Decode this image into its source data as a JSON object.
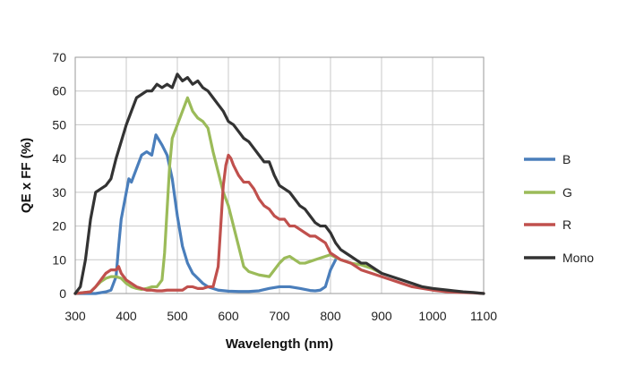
{
  "chart_data": {
    "type": "line",
    "xlabel": "Wavelength (nm)",
    "ylabel": "QE x FF (%)",
    "xlim": [
      300,
      1100
    ],
    "ylim": [
      0,
      70
    ],
    "xticks": [
      300,
      400,
      500,
      600,
      700,
      800,
      900,
      1000,
      1100
    ],
    "yticks": [
      0,
      10,
      20,
      30,
      40,
      50,
      60,
      70
    ],
    "grid": true,
    "legend": "right",
    "series": [
      {
        "name": "B",
        "color": "#4a7ebb",
        "x": [
          300,
          340,
          360,
          370,
          380,
          385,
          390,
          400,
          405,
          410,
          420,
          430,
          440,
          450,
          458,
          462,
          470,
          480,
          490,
          500,
          510,
          520,
          530,
          540,
          550,
          560,
          570,
          580,
          600,
          620,
          640,
          660,
          680,
          700,
          720,
          740,
          760,
          770,
          780,
          790,
          800,
          810
        ],
        "y": [
          0,
          0,
          0.5,
          1,
          5,
          14,
          22,
          30,
          34,
          33,
          37,
          41,
          42,
          41,
          47,
          46,
          44,
          41,
          34,
          23,
          14,
          9,
          6,
          4.5,
          3,
          2,
          1.5,
          1,
          0.7,
          0.6,
          0.6,
          0.8,
          1.5,
          2,
          2,
          1.5,
          0.9,
          0.8,
          1,
          2,
          7,
          10
        ]
      },
      {
        "name": "G",
        "color": "#9bbb59",
        "x": [
          300,
          330,
          340,
          350,
          360,
          370,
          380,
          390,
          400,
          410,
          420,
          430,
          440,
          450,
          460,
          470,
          475,
          480,
          485,
          490,
          500,
          510,
          515,
          520,
          530,
          540,
          550,
          560,
          570,
          580,
          590,
          600,
          610,
          620,
          630,
          640,
          660,
          680,
          690,
          700,
          710,
          720,
          730,
          740,
          750,
          760,
          770,
          780,
          790,
          800,
          820,
          840,
          860,
          880,
          900
        ],
        "y": [
          0,
          0.5,
          2,
          3.5,
          4.5,
          5,
          5,
          4.5,
          3,
          2,
          1.5,
          1.2,
          1.5,
          2,
          2,
          4,
          12,
          25,
          38,
          46,
          50,
          54,
          56,
          58,
          54,
          52,
          51,
          49,
          42,
          36,
          30,
          26,
          20,
          14,
          8,
          6.5,
          5.5,
          5,
          7,
          9,
          10.5,
          11,
          10,
          9,
          9,
          9.5,
          10,
          10.5,
          11,
          11.5,
          10,
          9,
          8.5,
          7.5,
          6
        ]
      },
      {
        "name": "R",
        "color": "#c0504d",
        "x": [
          300,
          330,
          340,
          350,
          360,
          370,
          380,
          385,
          390,
          400,
          410,
          420,
          430,
          440,
          450,
          460,
          470,
          480,
          490,
          500,
          510,
          520,
          530,
          540,
          550,
          560,
          570,
          580,
          585,
          590,
          595,
          600,
          605,
          610,
          620,
          630,
          640,
          650,
          660,
          670,
          680,
          690,
          700,
          710,
          720,
          730,
          740,
          750,
          760,
          770,
          780,
          790,
          800,
          810,
          820,
          840,
          860,
          880,
          900,
          920,
          940,
          960,
          980,
          1000,
          1030,
          1060,
          1080,
          1100
        ],
        "y": [
          0,
          0.5,
          2,
          4,
          6,
          7,
          7,
          8,
          6,
          4,
          3,
          2,
          1.5,
          1,
          1,
          0.8,
          0.8,
          1,
          1,
          1,
          1,
          2,
          2,
          1.5,
          1.5,
          2,
          2,
          8,
          20,
          32,
          38,
          41,
          40,
          38,
          35,
          33,
          33,
          31,
          28,
          26,
          25,
          23,
          22,
          22,
          20,
          20,
          19,
          18,
          17,
          17,
          16,
          15,
          12,
          11,
          10,
          9,
          7,
          6,
          5,
          4,
          3,
          2,
          1.5,
          1,
          0.5,
          0.3,
          0.2,
          0
        ]
      },
      {
        "name": "Mono",
        "color": "#333333",
        "x": [
          300,
          310,
          320,
          330,
          340,
          350,
          360,
          370,
          380,
          390,
          400,
          410,
          420,
          430,
          440,
          450,
          460,
          470,
          480,
          490,
          500,
          510,
          520,
          530,
          540,
          550,
          560,
          570,
          580,
          590,
          600,
          610,
          620,
          630,
          640,
          650,
          660,
          670,
          680,
          690,
          700,
          710,
          720,
          730,
          740,
          750,
          760,
          770,
          780,
          790,
          800,
          810,
          820,
          830,
          840,
          850,
          860,
          870,
          880,
          900,
          920,
          940,
          960,
          980,
          1000,
          1030,
          1060,
          1080,
          1100
        ],
        "y": [
          0,
          2,
          10,
          22,
          30,
          31,
          32,
          34,
          40,
          45,
          50,
          54,
          58,
          59,
          60,
          60,
          62,
          61,
          62,
          61,
          65,
          63,
          64,
          62,
          63,
          61,
          60,
          58,
          56,
          54,
          51,
          50,
          48,
          46,
          45,
          43,
          41,
          39,
          39,
          35,
          32,
          31,
          30,
          28,
          26,
          25,
          23,
          21,
          20,
          20,
          18,
          15,
          13,
          12,
          11,
          10,
          9,
          9,
          8,
          6,
          5,
          4,
          3,
          2,
          1.5,
          1,
          0.5,
          0.3,
          0
        ]
      }
    ]
  }
}
